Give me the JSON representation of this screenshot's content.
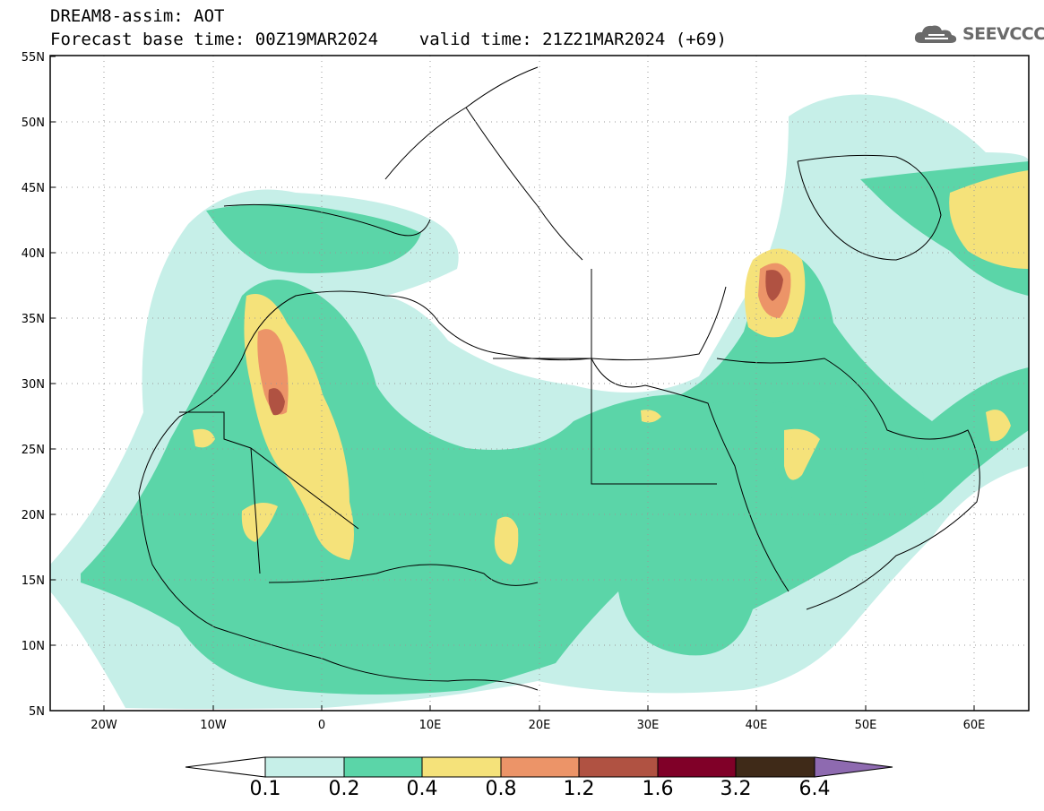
{
  "header": {
    "title_line1": "DREAM8-assim: AOT",
    "title_line2": "Forecast base time: 00Z19MAR2024    valid time: 21Z21MAR2024 (+69)"
  },
  "brand": {
    "label": "SEEVCCC",
    "icon": "cloud-icon",
    "color": "#6a6a6a"
  },
  "map": {
    "lat_range": [
      5,
      55
    ],
    "lon_range": [
      -25,
      65
    ],
    "lat_ticks": [
      "5N",
      "10N",
      "15N",
      "20N",
      "25N",
      "30N",
      "35N",
      "40N",
      "45N",
      "50N",
      "55N"
    ],
    "lon_ticks": [
      "20W",
      "10W",
      "0",
      "10E",
      "20E",
      "30E",
      "40E",
      "50E",
      "60E"
    ],
    "gridlines": "dotted"
  },
  "colorbar": {
    "labels": [
      "0.1",
      "0.2",
      "0.4",
      "0.8",
      "1.2",
      "1.6",
      "3.2",
      "6.4"
    ],
    "colors": [
      "#ffffff",
      "#c6efe8",
      "#5bd5a8",
      "#f5e27a",
      "#ec9468",
      "#b05242",
      "#800028",
      "#3f2a18",
      "#8e6ab0"
    ]
  }
}
